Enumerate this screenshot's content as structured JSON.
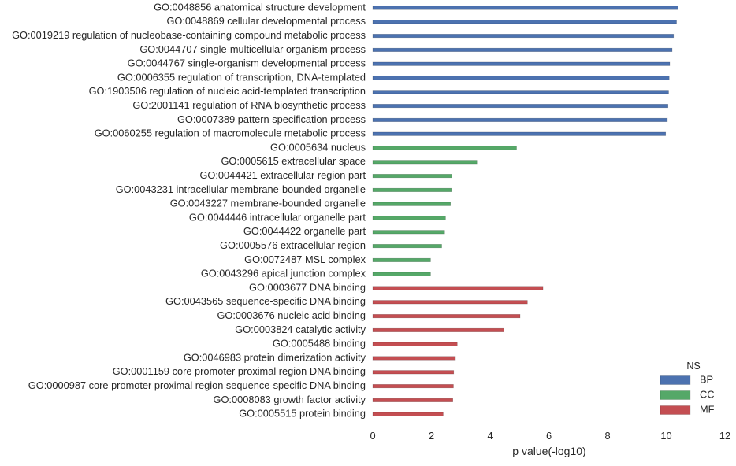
{
  "chart_data": {
    "type": "bar",
    "orientation": "horizontal",
    "title": "",
    "xlabel": "p value(-log10)",
    "ylabel": "",
    "xlim": [
      0,
      12
    ],
    "xticks": [
      0,
      2,
      4,
      6,
      8,
      10,
      12
    ],
    "grid": false,
    "legend": {
      "title": "NS",
      "placement": "bottom-right",
      "entries": [
        {
          "name": "BP",
          "color": "#4c72b0"
        },
        {
          "name": "CC",
          "color": "#55a868"
        },
        {
          "name": "MF",
          "color": "#c44e52"
        }
      ]
    },
    "categories": [
      "GO:0048856 anatomical structure development",
      "GO:0048869 cellular developmental process",
      "GO:0019219 regulation of nucleobase-containing compound metabolic process",
      "GO:0044707 single-multicellular organism process",
      "GO:0044767 single-organism developmental process",
      "GO:0006355 regulation of transcription, DNA-templated",
      "GO:1903506 regulation of nucleic acid-templated transcription",
      "GO:2001141 regulation of RNA biosynthetic process",
      "GO:0007389 pattern specification process",
      "GO:0060255 regulation of macromolecule metabolic process",
      "GO:0005634 nucleus",
      "GO:0005615 extracellular space",
      "GO:0044421 extracellular region part",
      "GO:0043231 intracellular membrane-bounded organelle",
      "GO:0043227 membrane-bounded organelle",
      "GO:0044446 intracellular organelle part",
      "GO:0044422 organelle part",
      "GO:0005576 extracellular region",
      "GO:0072487 MSL complex",
      "GO:0043296 apical junction complex",
      "GO:0003677 DNA binding",
      "GO:0043565 sequence-specific DNA binding",
      "GO:0003676 nucleic acid binding",
      "GO:0003824 catalytic activity",
      "GO:0005488 binding",
      "GO:0046983 protein dimerization activity",
      "GO:0001159 core promoter proximal region DNA binding",
      "GO:0000987 core promoter proximal region sequence-specific DNA binding",
      "GO:0008083 growth factor activity",
      "GO:0005515 protein binding"
    ],
    "series": [
      {
        "name": "BP",
        "values": [
          10.4,
          10.35,
          10.25,
          10.2,
          10.12,
          10.1,
          10.08,
          10.06,
          10.04,
          9.98,
          null,
          null,
          null,
          null,
          null,
          null,
          null,
          null,
          null,
          null,
          null,
          null,
          null,
          null,
          null,
          null,
          null,
          null,
          null,
          null
        ]
      },
      {
        "name": "CC",
        "values": [
          null,
          null,
          null,
          null,
          null,
          null,
          null,
          null,
          null,
          null,
          4.9,
          3.55,
          2.7,
          2.68,
          2.65,
          2.48,
          2.45,
          2.35,
          1.97,
          1.97,
          null,
          null,
          null,
          null,
          null,
          null,
          null,
          null,
          null,
          null
        ]
      },
      {
        "name": "MF",
        "values": [
          null,
          null,
          null,
          null,
          null,
          null,
          null,
          null,
          null,
          null,
          null,
          null,
          null,
          null,
          null,
          null,
          null,
          null,
          null,
          null,
          5.8,
          5.27,
          5.02,
          4.47,
          2.88,
          2.82,
          2.76,
          2.75,
          2.73,
          2.4
        ]
      }
    ]
  }
}
